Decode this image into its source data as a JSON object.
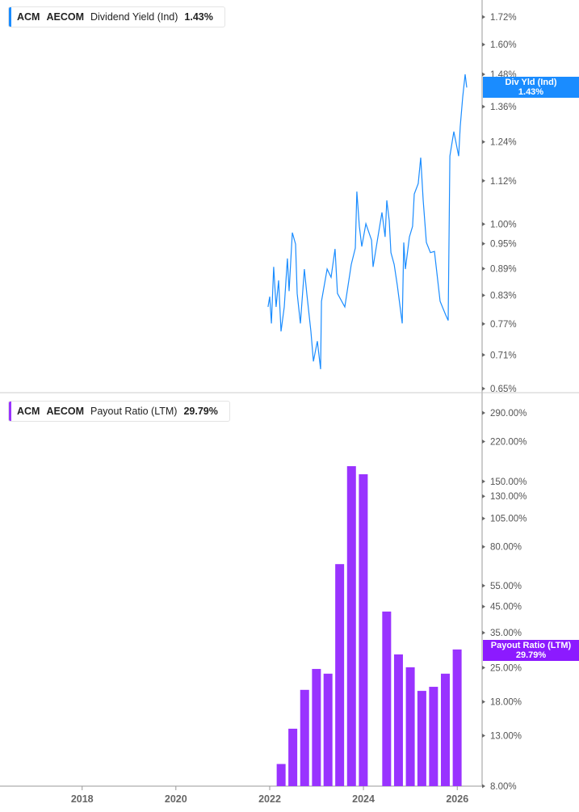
{
  "panels": [
    {
      "ticker": "ACM",
      "company": "AECOM",
      "metric": "Dividend Yield (Ind)",
      "value": "1.43%",
      "tag_label": "Div Yld (Ind)",
      "tag_value": "1.43%",
      "color": "#1a8cff"
    },
    {
      "ticker": "ACM",
      "company": "AECOM",
      "metric": "Payout Ratio (LTM)",
      "value": "29.79%",
      "tag_label": "Payout Ratio (LTM)",
      "tag_value": "29.79%",
      "color": "#9933ff"
    }
  ],
  "chart_data": [
    {
      "type": "line",
      "title": "Dividend Yield (Ind)",
      "y_scale": "log",
      "ylim": [
        0.65,
        1.72
      ],
      "yticks": [
        "1.72%",
        "1.60%",
        "1.48%",
        "1.36%",
        "1.24%",
        "1.12%",
        "1.00%",
        "0.95%",
        "0.89%",
        "0.83%",
        "0.77%",
        "0.71%",
        "0.65%"
      ],
      "ytick_values": [
        1.72,
        1.6,
        1.48,
        1.36,
        1.24,
        1.12,
        1.0,
        0.95,
        0.89,
        0.83,
        0.77,
        0.71,
        0.65
      ],
      "color": "#1a8cff",
      "points": [
        [
          "2021-12-19",
          0.805
        ],
        [
          "2022-01-01",
          0.827
        ],
        [
          "2022-01-14",
          0.771
        ],
        [
          "2022-02-01",
          0.894
        ],
        [
          "2022-02-20",
          0.805
        ],
        [
          "2022-03-11",
          0.863
        ],
        [
          "2022-03-30",
          0.755
        ],
        [
          "2022-04-24",
          0.805
        ],
        [
          "2022-05-19",
          0.914
        ],
        [
          "2022-06-01",
          0.839
        ],
        [
          "2022-06-26",
          0.978
        ],
        [
          "2022-07-21",
          0.949
        ],
        [
          "2022-08-03",
          0.834
        ],
        [
          "2022-08-28",
          0.771
        ],
        [
          "2022-09-28",
          0.889
        ],
        [
          "2022-10-17",
          0.834
        ],
        [
          "2022-11-18",
          0.755
        ],
        [
          "2022-12-07",
          0.698
        ],
        [
          "2023-01-07",
          0.736
        ],
        [
          "2023-02-01",
          0.684
        ],
        [
          "2023-02-08",
          0.817
        ],
        [
          "2023-03-24",
          0.889
        ],
        [
          "2023-04-24",
          0.87
        ],
        [
          "2023-05-25",
          0.937
        ],
        [
          "2023-06-13",
          0.834
        ],
        [
          "2023-08-09",
          0.805
        ],
        [
          "2023-09-28",
          0.9
        ],
        [
          "2023-10-30",
          0.939
        ],
        [
          "2023-11-11",
          1.089
        ],
        [
          "2023-11-30",
          0.994
        ],
        [
          "2023-12-19",
          0.943
        ],
        [
          "2024-01-20",
          1.001
        ],
        [
          "2024-03-04",
          0.959
        ],
        [
          "2024-03-16",
          0.894
        ],
        [
          "2024-04-23",
          0.967
        ],
        [
          "2024-05-24",
          1.031
        ],
        [
          "2024-06-18",
          0.967
        ],
        [
          "2024-07-01",
          1.064
        ],
        [
          "2024-07-20",
          1.009
        ],
        [
          "2024-08-02",
          0.928
        ],
        [
          "2024-08-27",
          0.9
        ],
        [
          "2024-09-21",
          0.852
        ],
        [
          "2024-10-29",
          0.771
        ],
        [
          "2024-11-10",
          0.953
        ],
        [
          "2024-11-23",
          0.889
        ],
        [
          "2024-12-24",
          0.967
        ],
        [
          "2025-01-18",
          0.994
        ],
        [
          "2025-01-31",
          1.082
        ],
        [
          "2025-03-03",
          1.112
        ],
        [
          "2025-03-22",
          1.19
        ],
        [
          "2025-04-10",
          1.066
        ],
        [
          "2025-05-05",
          0.953
        ],
        [
          "2025-06-06",
          0.928
        ],
        [
          "2025-07-07",
          0.931
        ],
        [
          "2025-08-20",
          0.817
        ],
        [
          "2025-10-03",
          0.788
        ],
        [
          "2025-10-22",
          0.777
        ],
        [
          "2025-11-04",
          1.195
        ],
        [
          "2025-12-05",
          1.274
        ],
        [
          "2026-01-12",
          1.195
        ],
        [
          "2026-01-24",
          1.29
        ],
        [
          "2026-02-12",
          1.395
        ],
        [
          "2026-03-03",
          1.48
        ],
        [
          "2026-03-16",
          1.43
        ]
      ]
    },
    {
      "type": "bar",
      "title": "Payout Ratio (LTM)",
      "y_scale": "log",
      "ylim": [
        8,
        290
      ],
      "yticks": [
        "290.00%",
        "220.00%",
        "150.00%",
        "130.00%",
        "105.00%",
        "80.00%",
        "55.00%",
        "45.00%",
        "35.00%",
        "25.00%",
        "18.00%",
        "13.00%",
        "8.00%"
      ],
      "ytick_values": [
        290,
        220,
        150,
        130,
        105,
        80,
        55,
        45,
        35,
        25,
        18,
        13,
        8
      ],
      "color": "#9933ff",
      "bars": [
        [
          "2022-03-31",
          9.9
        ],
        [
          "2022-06-30",
          13.9
        ],
        [
          "2022-09-30",
          20.2
        ],
        [
          "2022-12-31",
          24.7
        ],
        [
          "2023-03-31",
          23.6
        ],
        [
          "2023-06-30",
          67.7
        ],
        [
          "2023-09-30",
          173.7
        ],
        [
          "2023-12-31",
          160.7
        ],
        [
          "2024-06-30",
          42.9
        ],
        [
          "2024-09-30",
          28.4
        ],
        [
          "2024-12-31",
          25.1
        ],
        [
          "2025-03-31",
          20.0
        ],
        [
          "2025-06-30",
          20.8
        ],
        [
          "2025-09-30",
          23.6
        ],
        [
          "2025-12-31",
          29.79
        ]
      ]
    }
  ],
  "x_axis": {
    "ticks": [
      "2018",
      "2020",
      "2022",
      "2024",
      "2026"
    ]
  }
}
